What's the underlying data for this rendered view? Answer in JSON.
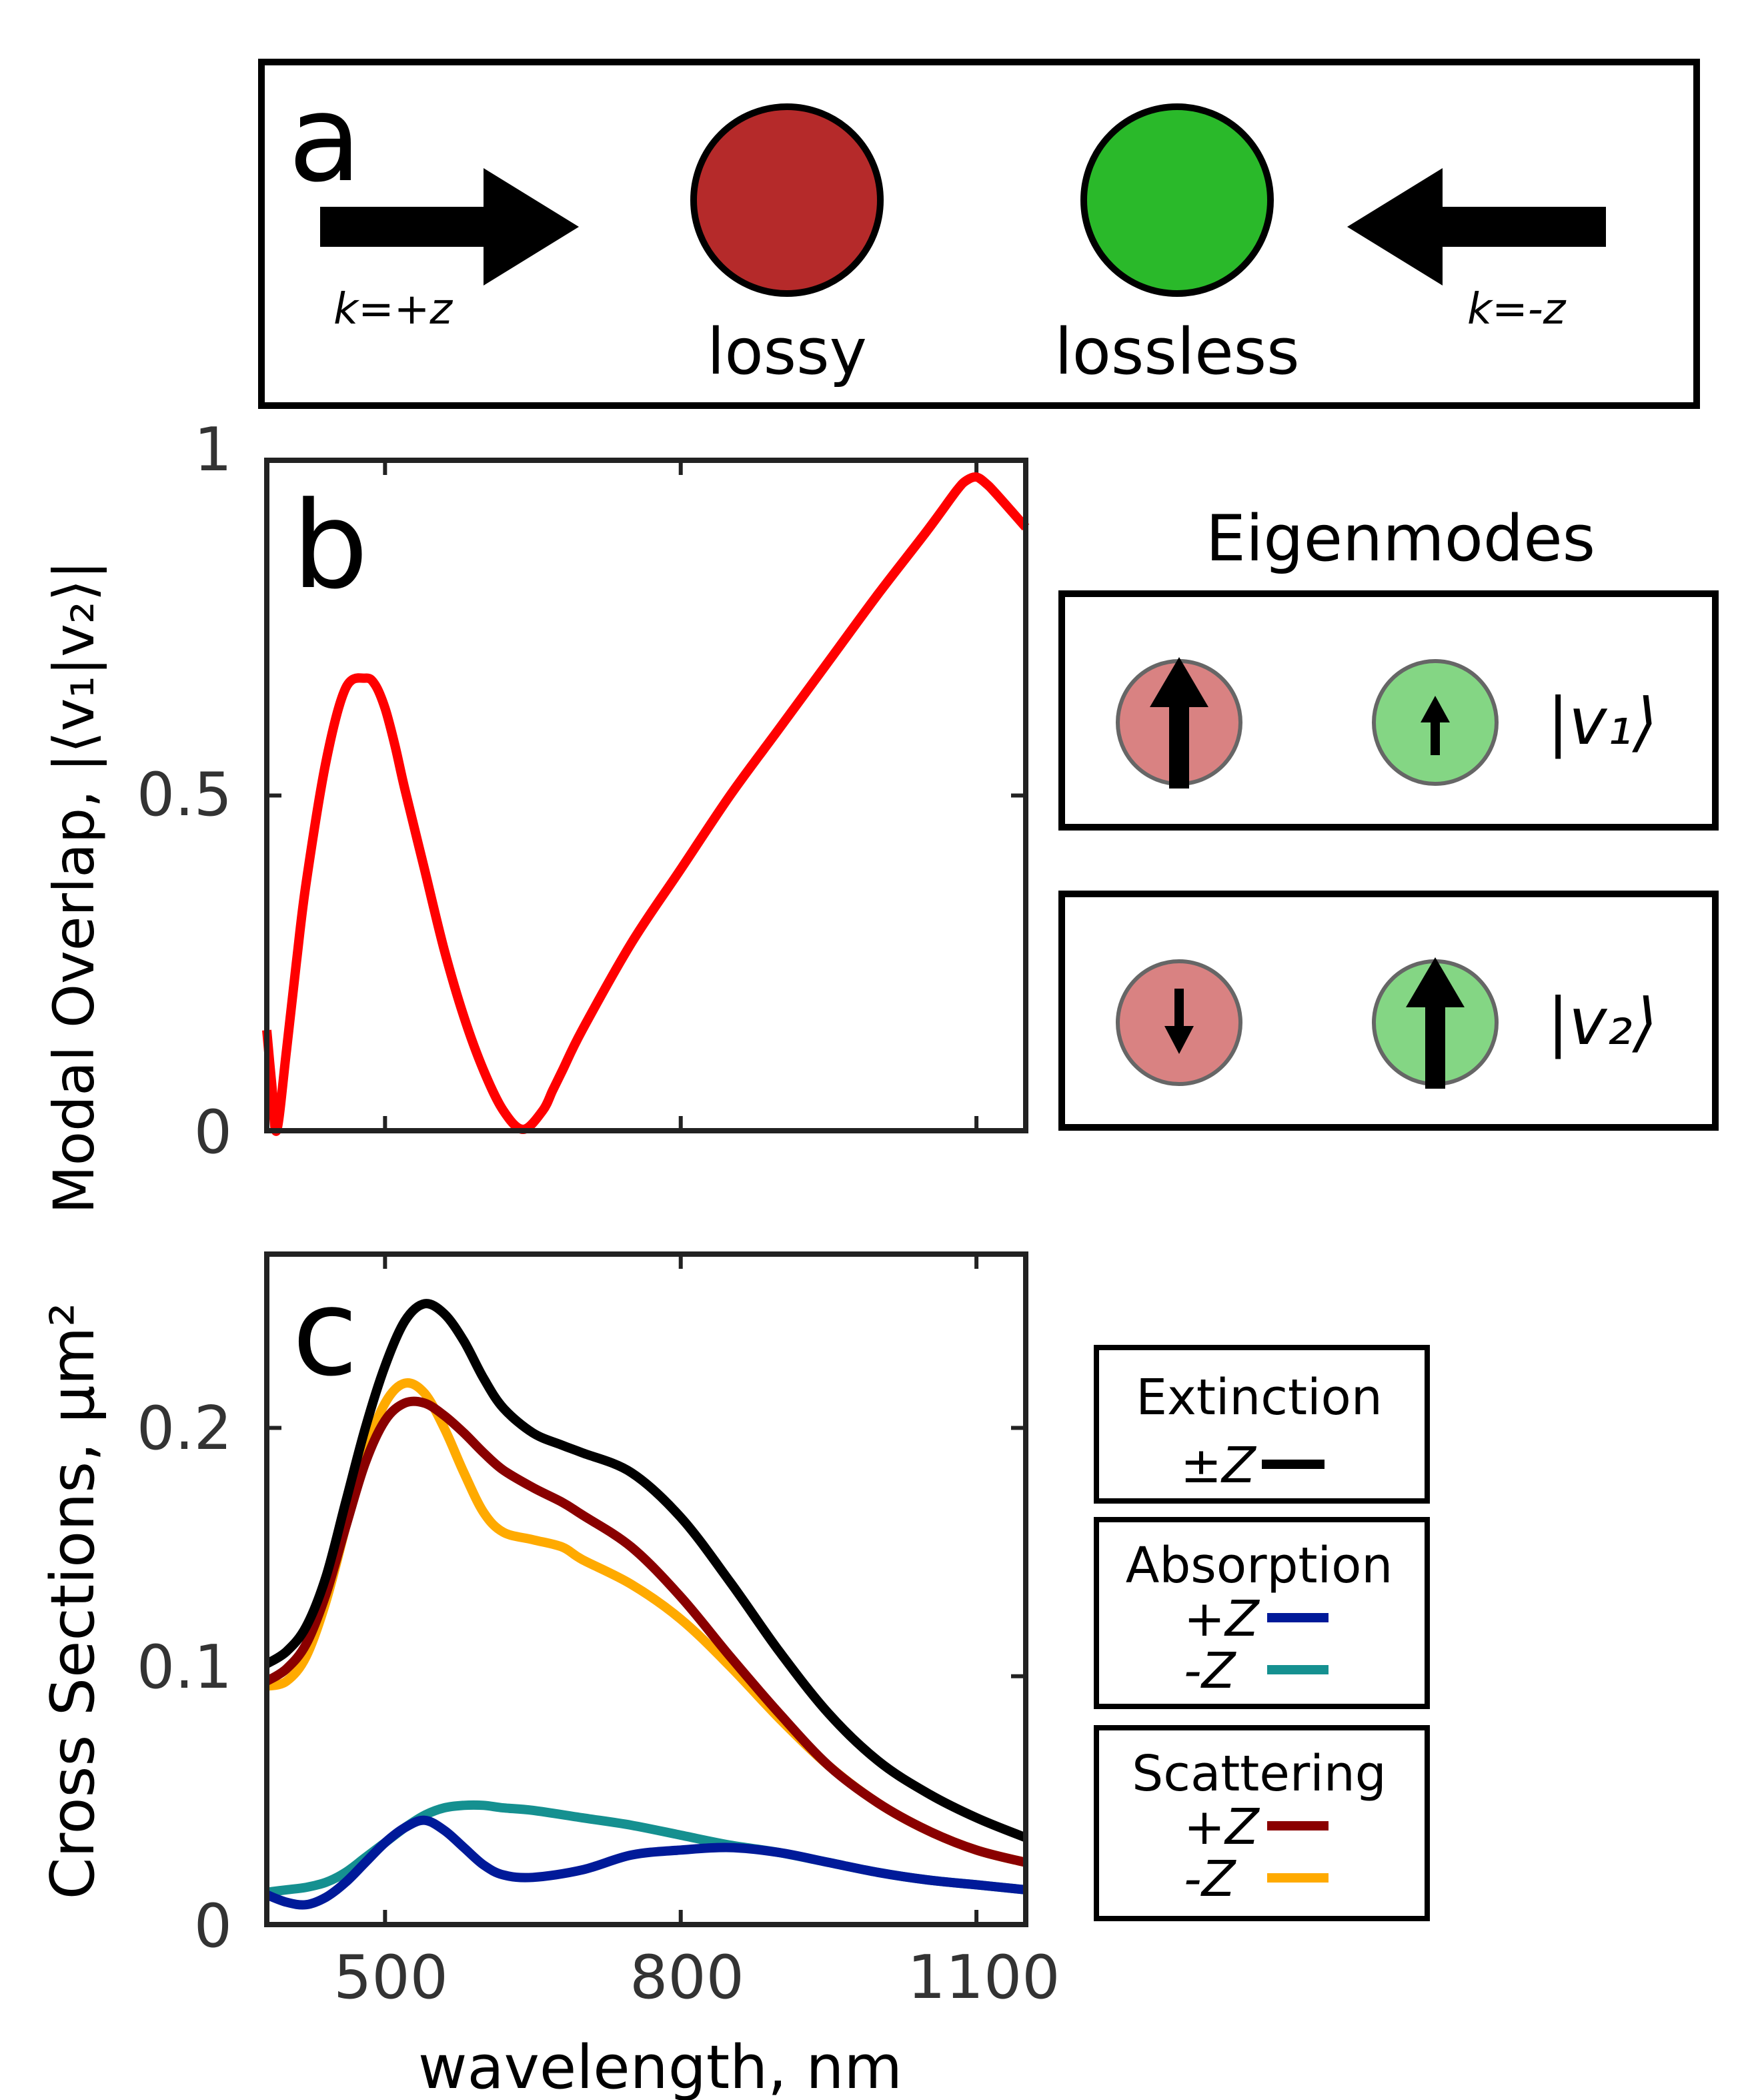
{
  "panel_a": {
    "label": "a",
    "left_arrow_label": "k=+z",
    "right_arrow_label": "k=-z",
    "lossy_label": "lossy",
    "lossless_label": "lossless",
    "colors": {
      "lossy": "#b52a2a",
      "lossless": "#2ab92a"
    }
  },
  "eigenmodes": {
    "title": "Eigenmodes",
    "mode1_label": "|v₁⟩",
    "mode2_label": "|v₂⟩",
    "colors": {
      "lossy": "#d98282",
      "lossless": "#84d684"
    }
  },
  "legend": {
    "extinction": {
      "title": "Extinction",
      "entries": [
        "±Z"
      ]
    },
    "absorption": {
      "title": "Absorption",
      "entries": [
        "+Z",
        "-Z"
      ]
    },
    "scattering": {
      "title": "Scattering",
      "entries": [
        "+Z",
        "-Z"
      ]
    }
  },
  "chart_data": [
    {
      "id": "b",
      "type": "line",
      "panel_label": "b",
      "title": "",
      "xlabel": "",
      "ylabel": "Modal Overlap, |⟨v₁|v₂⟩|",
      "xlim": [
        380,
        1150
      ],
      "ylim": [
        0,
        1
      ],
      "xticks": [
        500,
        800,
        1100
      ],
      "yticks": [
        0,
        0.5,
        1
      ],
      "ytick_labels": [
        "0",
        "0.5",
        "1"
      ],
      "grid": false,
      "series": [
        {
          "name": "overlap",
          "color": "#ff0000",
          "x": [
            380,
            385,
            390,
            400,
            410,
            420,
            440,
            460,
            480,
            490,
            500,
            510,
            520,
            540,
            560,
            580,
            600,
            620,
            640,
            660,
            670,
            680,
            700,
            750,
            800,
            850,
            900,
            950,
            1000,
            1050,
            1080,
            1090,
            1100,
            1110,
            1120,
            1150
          ],
          "values": [
            0.15,
            0.07,
            0.0,
            0.12,
            0.25,
            0.37,
            0.55,
            0.66,
            0.675,
            0.665,
            0.63,
            0.575,
            0.51,
            0.39,
            0.27,
            0.17,
            0.09,
            0.03,
            0.002,
            0.03,
            0.06,
            0.09,
            0.15,
            0.28,
            0.39,
            0.5,
            0.6,
            0.7,
            0.8,
            0.895,
            0.955,
            0.97,
            0.975,
            0.965,
            0.95,
            0.9
          ]
        }
      ]
    },
    {
      "id": "c",
      "type": "line",
      "panel_label": "c",
      "title": "",
      "xlabel": "wavelength, nm",
      "ylabel": "Cross Sections, μm²",
      "xlim": [
        380,
        1150
      ],
      "ylim": [
        0,
        0.27
      ],
      "xticks": [
        500,
        800,
        1100
      ],
      "xtick_labels": [
        "500",
        "800",
        "1100"
      ],
      "yticks": [
        0,
        0.1,
        0.2
      ],
      "ytick_labels": [
        "0",
        "0.1",
        "0.2"
      ],
      "grid": false,
      "series": [
        {
          "name": "Extinction ±Z",
          "color": "#000000",
          "x": [
            380,
            400,
            420,
            440,
            460,
            480,
            500,
            520,
            540,
            560,
            580,
            600,
            620,
            650,
            680,
            700,
            750,
            800,
            850,
            900,
            950,
            1000,
            1050,
            1100,
            1150
          ],
          "values": [
            0.105,
            0.11,
            0.12,
            0.14,
            0.17,
            0.2,
            0.225,
            0.243,
            0.25,
            0.246,
            0.235,
            0.22,
            0.208,
            0.198,
            0.193,
            0.19,
            0.182,
            0.164,
            0.138,
            0.11,
            0.085,
            0.066,
            0.053,
            0.043,
            0.035
          ]
        },
        {
          "name": "Absorption +Z",
          "color": "#001a99",
          "x": [
            380,
            400,
            420,
            440,
            460,
            480,
            500,
            520,
            540,
            560,
            580,
            600,
            620,
            650,
            700,
            750,
            800,
            850,
            900,
            950,
            1000,
            1050,
            1100,
            1150
          ],
          "values": [
            0.012,
            0.009,
            0.008,
            0.011,
            0.017,
            0.025,
            0.033,
            0.039,
            0.042,
            0.038,
            0.031,
            0.024,
            0.02,
            0.019,
            0.022,
            0.028,
            0.03,
            0.031,
            0.029,
            0.025,
            0.021,
            0.018,
            0.016,
            0.014
          ]
        },
        {
          "name": "Absorption -Z",
          "color": "#159090",
          "x": [
            380,
            400,
            420,
            440,
            460,
            480,
            500,
            520,
            540,
            560,
            580,
            600,
            620,
            650,
            700,
            750,
            800,
            850,
            900,
            950,
            1000,
            1050,
            1100,
            1150
          ],
          "values": [
            0.013,
            0.014,
            0.015,
            0.017,
            0.021,
            0.027,
            0.033,
            0.039,
            0.044,
            0.047,
            0.048,
            0.048,
            0.047,
            0.046,
            0.043,
            0.04,
            0.036,
            0.032,
            0.029,
            0.025,
            0.021,
            0.018,
            0.016,
            0.014
          ]
        },
        {
          "name": "Scattering +Z",
          "color": "#8a0000",
          "x": [
            380,
            400,
            420,
            440,
            460,
            480,
            500,
            520,
            540,
            560,
            580,
            600,
            620,
            650,
            680,
            700,
            750,
            800,
            850,
            900,
            950,
            1000,
            1050,
            1100,
            1150
          ],
          "values": [
            0.098,
            0.103,
            0.113,
            0.133,
            0.16,
            0.186,
            0.203,
            0.21,
            0.21,
            0.205,
            0.198,
            0.19,
            0.183,
            0.176,
            0.17,
            0.165,
            0.152,
            0.132,
            0.108,
            0.085,
            0.064,
            0.049,
            0.038,
            0.03,
            0.025
          ]
        },
        {
          "name": "Scattering -Z",
          "color": "#ffaa00",
          "x": [
            380,
            400,
            420,
            440,
            460,
            480,
            500,
            520,
            540,
            560,
            580,
            600,
            620,
            650,
            680,
            700,
            750,
            800,
            850,
            900,
            950,
            1000,
            1050,
            1100,
            1150
          ],
          "values": [
            0.096,
            0.098,
            0.108,
            0.13,
            0.16,
            0.19,
            0.21,
            0.218,
            0.214,
            0.2,
            0.182,
            0.166,
            0.158,
            0.155,
            0.152,
            0.147,
            0.137,
            0.123,
            0.104,
            0.083,
            0.064,
            0.049,
            0.038,
            0.03,
            0.025
          ]
        }
      ]
    }
  ]
}
